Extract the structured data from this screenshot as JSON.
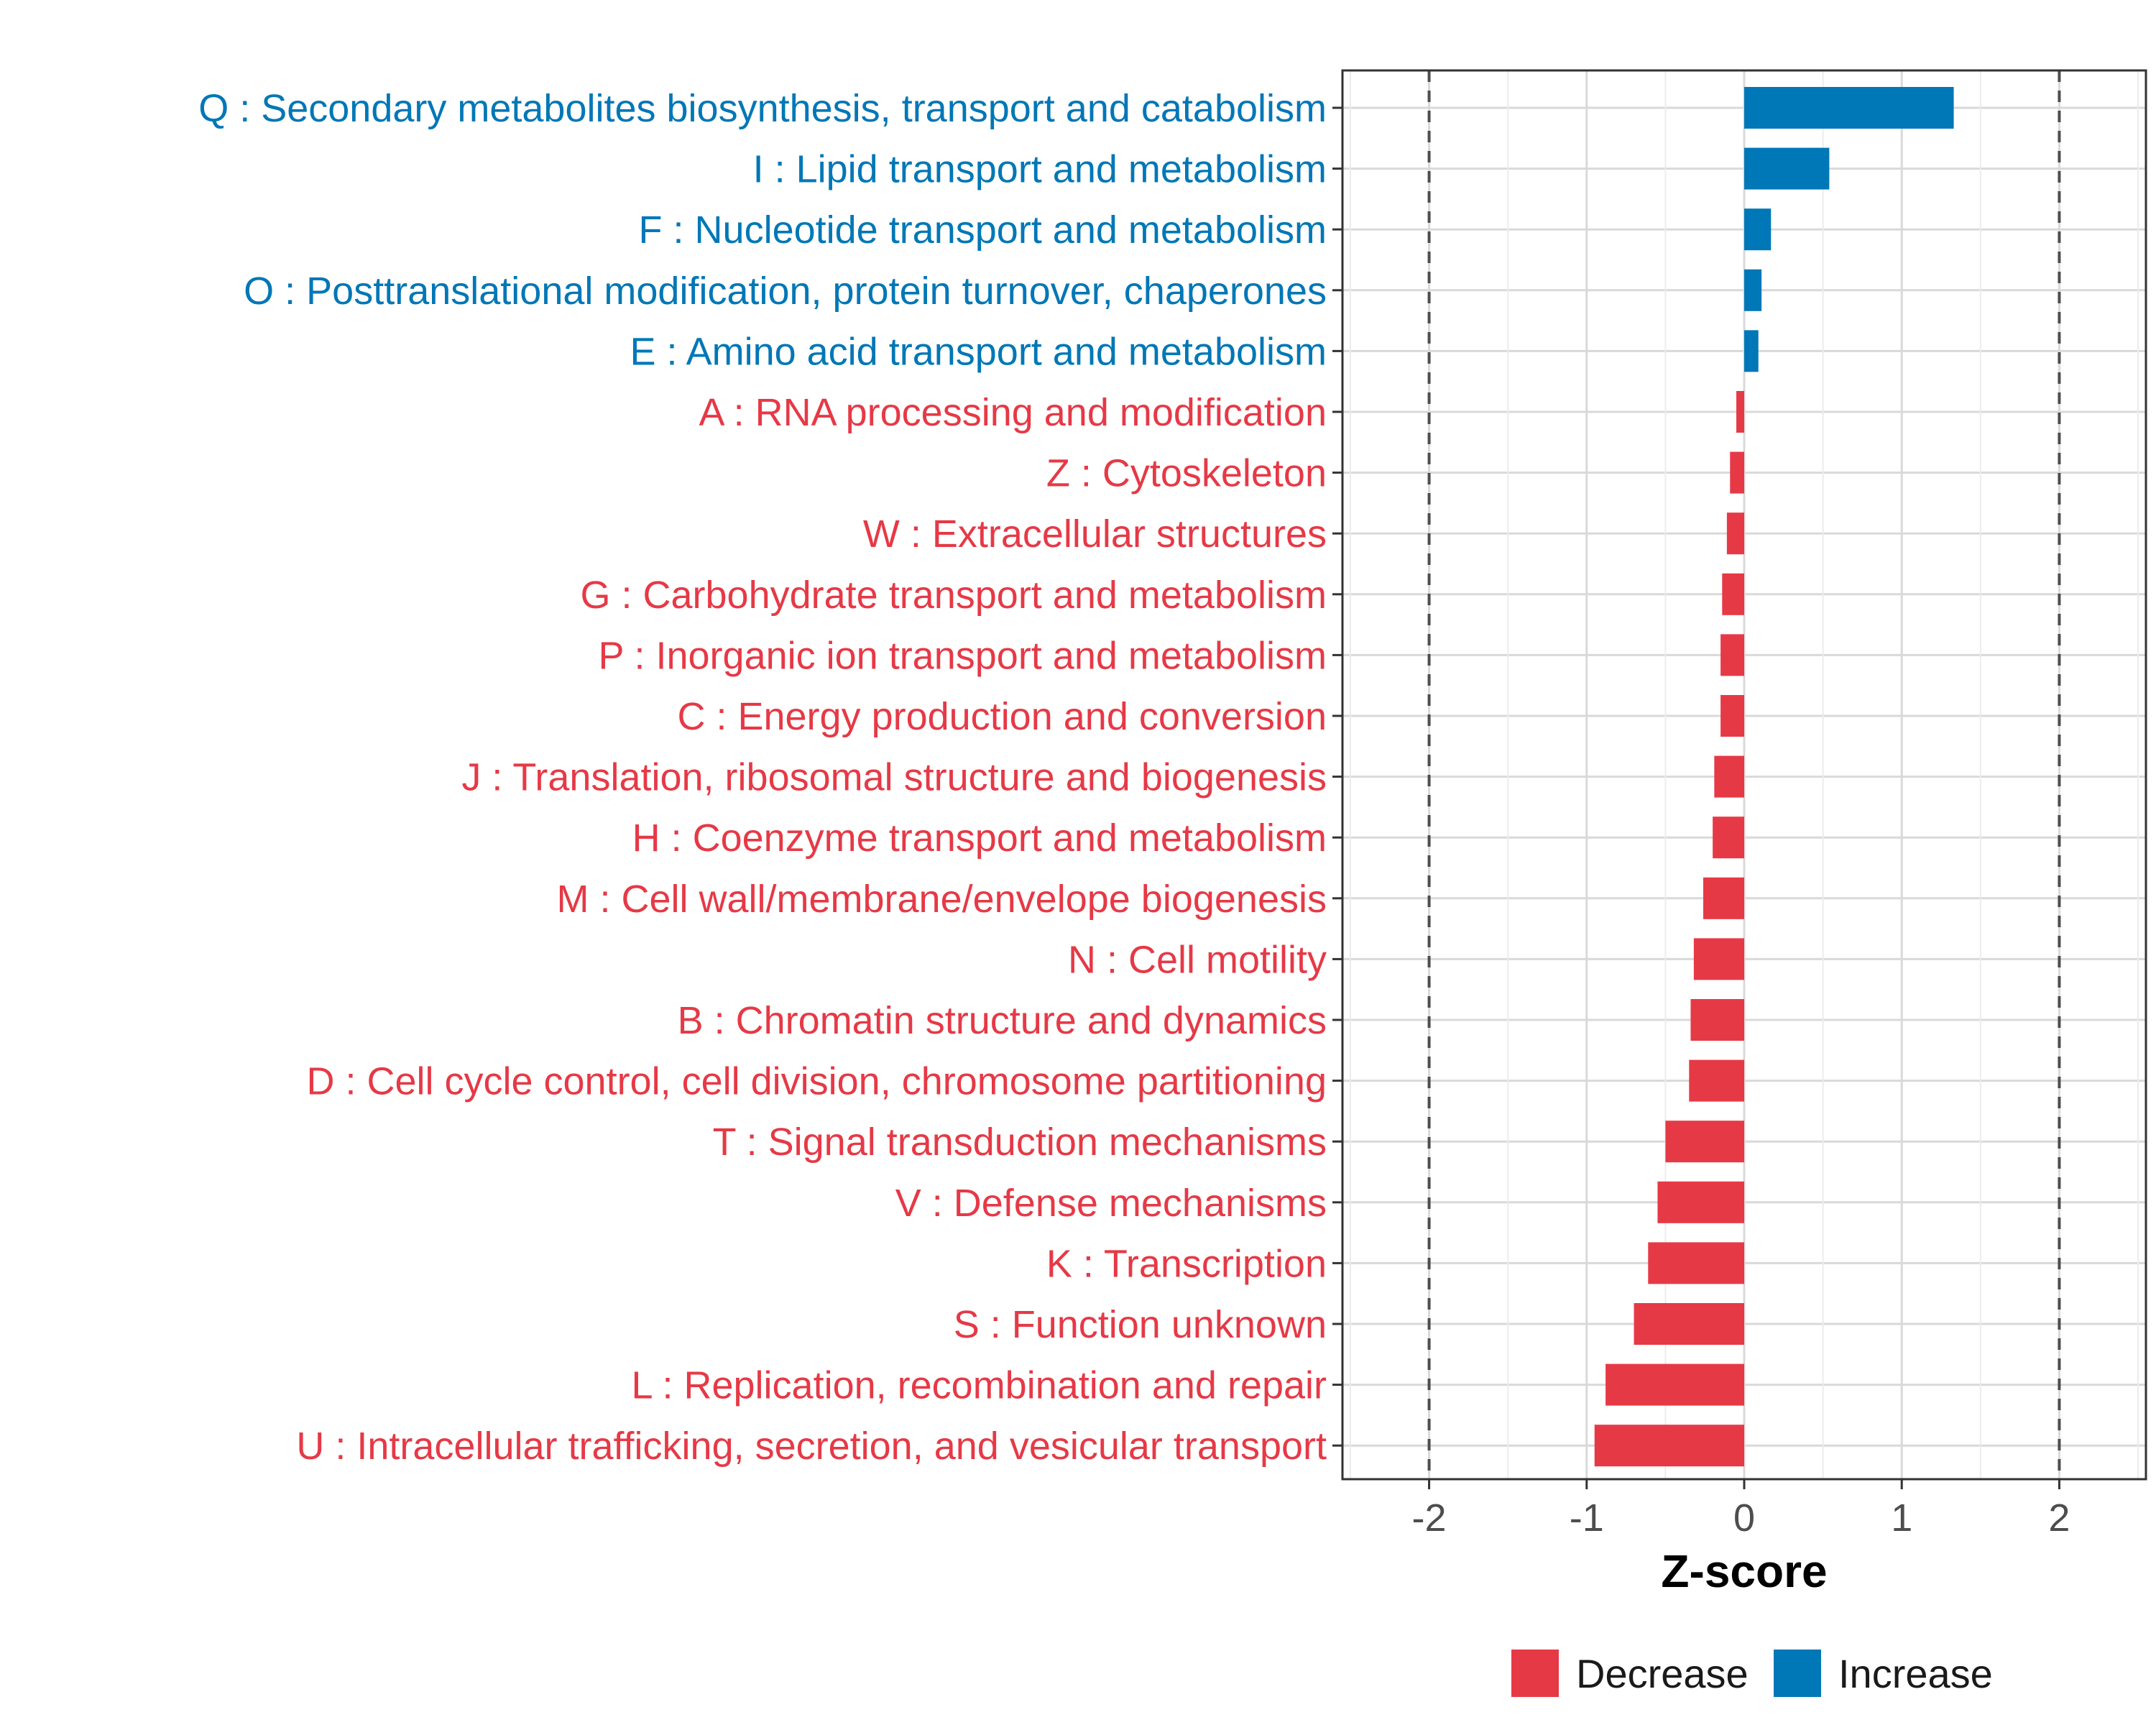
{
  "chart_data": {
    "type": "bar",
    "orientation": "horizontal",
    "xlabel": "Z-score",
    "xlim": [
      -2.55,
      2.55
    ],
    "xticks": [
      -2,
      -1,
      0,
      1,
      2
    ],
    "xtick_labels": [
      "-2",
      "-1",
      "0",
      "1",
      "2"
    ],
    "reference_lines": [
      -2,
      2
    ],
    "grid": true,
    "legend_position": "bottom",
    "categories": [
      "Q : Secondary metabolites biosynthesis, transport and catabolism",
      "I : Lipid transport and metabolism",
      "F : Nucleotide transport and metabolism",
      "O : Posttranslational modification, protein turnover, chaperones",
      "E : Amino acid transport and metabolism",
      "A : RNA processing and modification",
      "Z : Cytoskeleton",
      "W : Extracellular structures",
      "G : Carbohydrate transport and metabolism",
      "P : Inorganic ion transport and metabolism",
      "C : Energy production and conversion",
      "J : Translation, ribosomal structure and biogenesis",
      "H : Coenzyme transport and metabolism",
      "M : Cell wall/membrane/envelope biogenesis",
      "N : Cell motility",
      "B : Chromatin structure and dynamics",
      "D : Cell cycle control, cell division, chromosome partitioning",
      "T : Signal transduction mechanisms",
      "V : Defense mechanisms",
      "K : Transcription",
      "S : Function unknown",
      "L : Replication, recombination and repair",
      "U : Intracellular trafficking, secretion, and vesicular transport"
    ],
    "values": [
      1.33,
      0.54,
      0.17,
      0.11,
      0.09,
      -0.05,
      -0.09,
      -0.11,
      -0.14,
      -0.15,
      -0.15,
      -0.19,
      -0.2,
      -0.26,
      -0.32,
      -0.34,
      -0.35,
      -0.5,
      -0.55,
      -0.61,
      -0.7,
      -0.88,
      -0.95
    ],
    "direction": [
      "Increase",
      "Increase",
      "Increase",
      "Increase",
      "Increase",
      "Decrease",
      "Decrease",
      "Decrease",
      "Decrease",
      "Decrease",
      "Decrease",
      "Decrease",
      "Decrease",
      "Decrease",
      "Decrease",
      "Decrease",
      "Decrease",
      "Decrease",
      "Decrease",
      "Decrease",
      "Decrease",
      "Decrease",
      "Decrease"
    ],
    "legend": [
      {
        "label": "Decrease",
        "color": "#e63946"
      },
      {
        "label": "Increase",
        "color": "#0077b6"
      }
    ]
  }
}
